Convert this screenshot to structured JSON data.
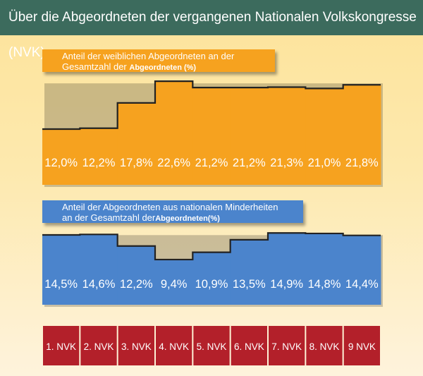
{
  "header": {
    "title": "Über die Abgeordneten der vergangenen Nationalen Volkskongresse (NVK)"
  },
  "chart_data": [
    {
      "type": "bar",
      "title_a": "Anteil der weiblichen Abgeordneten an der",
      "title_b": "Gesamtzahl der ",
      "title_c": "Abgeordneten  (%)",
      "categories": [
        "1. NVK",
        "2. NVK",
        "3. NVK",
        "4. NVK",
        "5. NVK",
        "6. NVK",
        "7. NVK",
        "8. NVK",
        "9  NVK"
      ],
      "values": [
        12.0,
        12.2,
        17.8,
        22.6,
        21.2,
        21.2,
        21.3,
        21.0,
        21.8
      ],
      "labels": [
        "12,0%",
        "12,2%",
        "17,8%",
        "22,6%",
        "21,2%",
        "21,2%",
        "21,3%",
        "21,0%",
        "21,8%"
      ],
      "color": "#f6a21f"
    },
    {
      "type": "bar",
      "title_a": "Anteil der Abgeordneten aus nationalen Minderheiten",
      "title_b": "an der Gesamtzahl der",
      "title_c": "Abgeordneten(%)",
      "categories": [
        "1. NVK",
        "2. NVK",
        "3. NVK",
        "4. NVK",
        "5. NVK",
        "6. NVK",
        "7. NVK",
        "8. NVK",
        "9  NVK"
      ],
      "values": [
        14.5,
        14.6,
        12.2,
        9.4,
        10.9,
        13.5,
        14.9,
        14.8,
        14.4
      ],
      "labels": [
        "14,5%",
        "14,6%",
        "12,2%",
        "9,4%",
        "10,9%",
        "13,5%",
        "14,9%",
        "14,8%",
        "14,4%"
      ],
      "color": "#4b84cc"
    }
  ],
  "nvk_color": "#b3202a"
}
